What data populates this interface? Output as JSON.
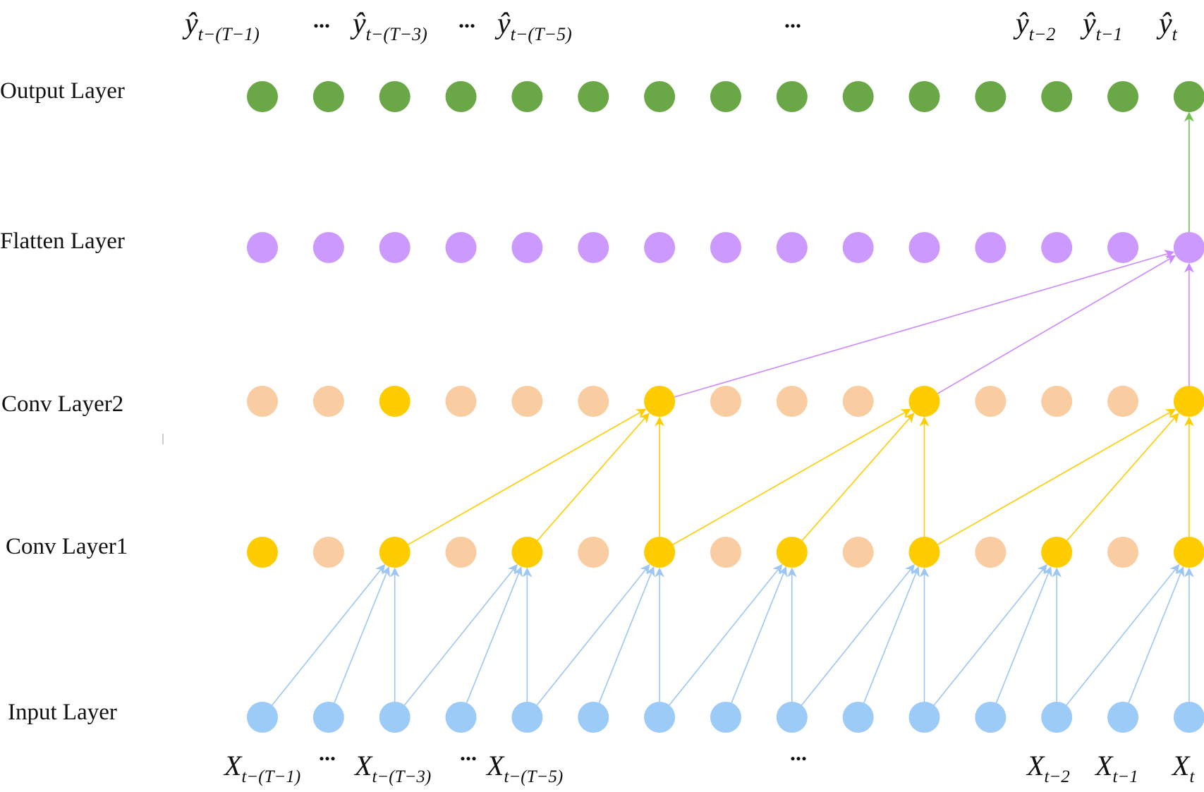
{
  "colors": {
    "input_node": "#9DCBF7",
    "input_edge": "#9DC6F2",
    "conv_active": "#FFCC00",
    "conv_inactive": "#F9CDA1",
    "conv_edge": "#FFCC00",
    "flatten_node": "#CC99FF",
    "flatten_edge": "#CC88FF",
    "output_node": "#6AA747",
    "output_edge": "#70C050"
  },
  "layers": {
    "output": "Output Layer",
    "flatten": "Flatten Layer",
    "conv2": "Conv Layer2",
    "conv1": "Conv Layer1",
    "input": "Input Layer"
  },
  "node_count": 15,
  "conv1_active": [
    0,
    2,
    4,
    6,
    8,
    10,
    12,
    14
  ],
  "conv2_active": [
    2,
    6,
    10,
    14
  ],
  "top_labels": [
    {
      "base": "ŷ",
      "sub": "t−(T−1)"
    },
    {
      "dots": "..."
    },
    {
      "base": "ŷ",
      "sub": "t−(T−3)"
    },
    {
      "dots": "..."
    },
    {
      "base": "ŷ",
      "sub": "t−(T−5)"
    },
    {
      "dots": "..."
    },
    {
      "base": "ŷ",
      "sub": "t−2"
    },
    {
      "base": "ŷ",
      "sub": "t−1"
    },
    {
      "base": "ŷ",
      "sub": "t"
    }
  ],
  "bottom_labels": [
    {
      "base": "X",
      "sub": "t−(T−1)"
    },
    {
      "dots": "..."
    },
    {
      "base": "X",
      "sub": "t−(T−3)"
    },
    {
      "dots": "..."
    },
    {
      "base": "X",
      "sub": "t−(T−5)"
    },
    {
      "dots": "..."
    },
    {
      "base": "X",
      "sub": "t−2"
    },
    {
      "base": "X",
      "sub": "t−1"
    },
    {
      "base": "X",
      "sub": "t"
    }
  ]
}
